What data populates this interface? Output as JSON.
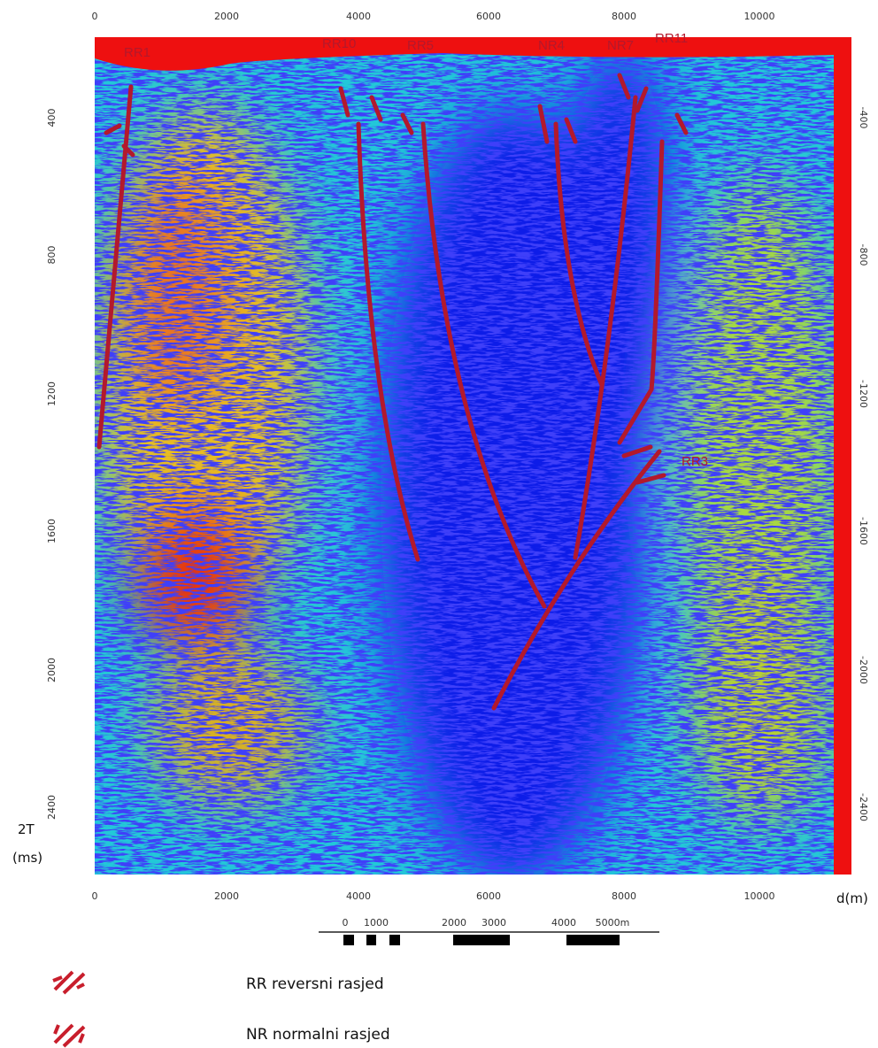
{
  "axes": {
    "top_ticks": [
      "0",
      "2000",
      "4000",
      "6000",
      "8000",
      "10000"
    ],
    "bottom_ticks": [
      "0",
      "2000",
      "4000",
      "6000",
      "8000",
      "10000"
    ],
    "left_ticks": [
      "400",
      "800",
      "1200",
      "1600",
      "2000",
      "2400"
    ],
    "right_ticks": [
      "-400",
      "-800",
      "-1200",
      "-1600",
      "-2000",
      "-2400"
    ],
    "y_label": [
      "2T",
      "(ms)"
    ],
    "x_label": "d(m)"
  },
  "faults": [
    "RR1",
    "RR10",
    "RR5",
    "NR4",
    "NR7",
    "RR11",
    "RR3"
  ],
  "scale_bar": [
    "0",
    "1000",
    "2000",
    "3000",
    "4000",
    "5000m"
  ],
  "legend": [
    "RR reversni rasjed",
    "NR normalni rasjed"
  ]
}
